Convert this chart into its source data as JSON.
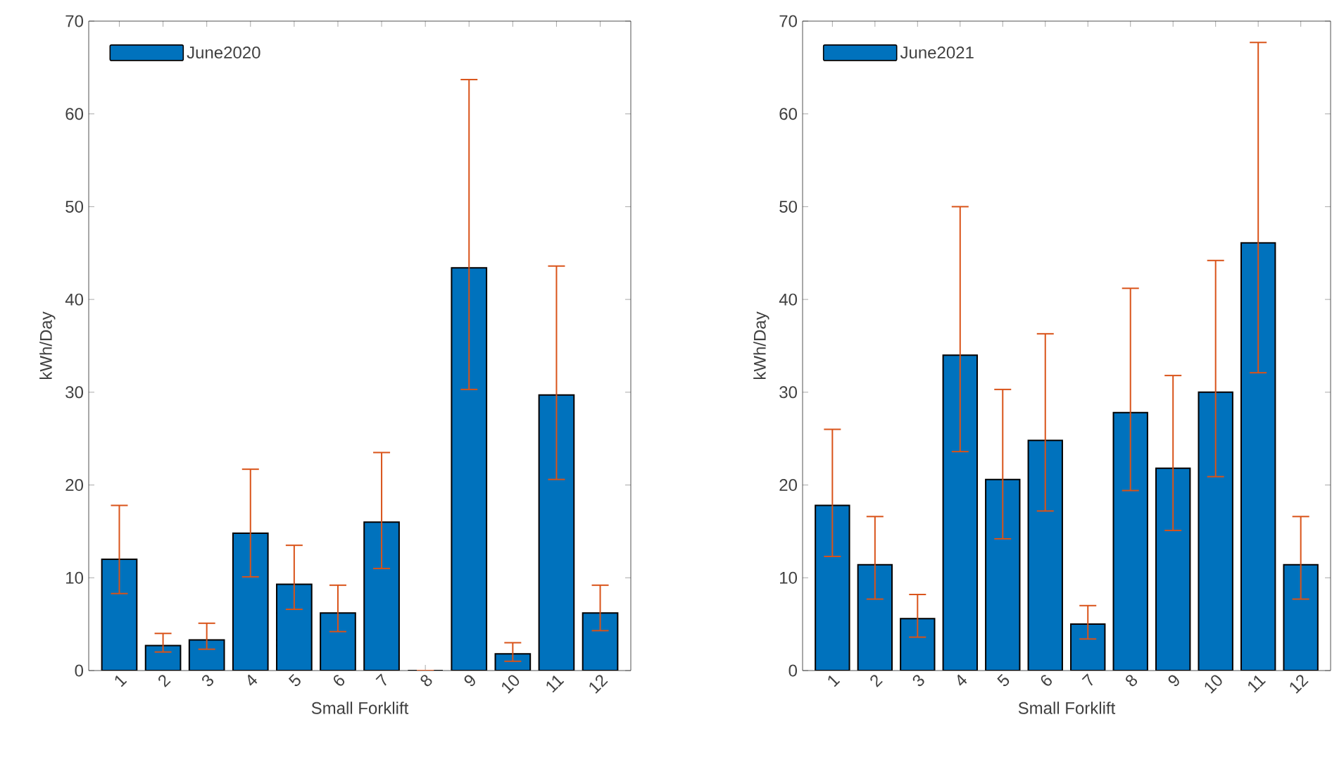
{
  "chart_data": [
    {
      "type": "bar",
      "xlabel": "Small Forklift",
      "ylabel": "kWh/Day",
      "categories": [
        "1",
        "2",
        "3",
        "4",
        "5",
        "6",
        "7",
        "8",
        "9",
        "10",
        "11",
        "12"
      ],
      "series": [
        {
          "name": "June2020",
          "color": "#0072bd",
          "values": [
            12.0,
            2.7,
            3.3,
            14.8,
            9.3,
            6.2,
            16.0,
            0,
            43.4,
            1.8,
            29.7,
            6.2
          ],
          "errors": [
            [
              8.3,
              17.8
            ],
            [
              2.0,
              4.0
            ],
            [
              2.3,
              5.1
            ],
            [
              10.1,
              21.7
            ],
            [
              6.6,
              13.5
            ],
            [
              4.2,
              9.2
            ],
            [
              11.0,
              23.5
            ],
            [
              0,
              0
            ],
            [
              30.3,
              63.7
            ],
            [
              1.0,
              3.0
            ],
            [
              20.6,
              43.6
            ],
            [
              4.3,
              9.2
            ]
          ]
        }
      ],
      "ylim": [
        0,
        70
      ],
      "yticks": [
        0,
        10,
        20,
        30,
        40,
        50,
        60,
        70
      ],
      "legend": "top left"
    },
    {
      "type": "bar",
      "xlabel": "Small Forklift",
      "ylabel": "kWh/Day",
      "categories": [
        "1",
        "2",
        "3",
        "4",
        "5",
        "6",
        "7",
        "8",
        "9",
        "10",
        "11",
        "12"
      ],
      "series": [
        {
          "name": "June2021",
          "color": "#0072bd",
          "values": [
            17.8,
            11.4,
            5.6,
            34.0,
            20.6,
            24.8,
            5.0,
            27.8,
            21.8,
            30.0,
            46.1,
            11.4
          ],
          "errors": [
            [
              12.3,
              26.0
            ],
            [
              7.7,
              16.6
            ],
            [
              3.6,
              8.2
            ],
            [
              23.6,
              50.0
            ],
            [
              14.2,
              30.3
            ],
            [
              17.2,
              36.3
            ],
            [
              3.4,
              7.0
            ],
            [
              19.4,
              41.2
            ],
            [
              15.1,
              31.8
            ],
            [
              20.9,
              44.2
            ],
            [
              32.1,
              67.7
            ],
            [
              7.7,
              16.6
            ]
          ]
        }
      ],
      "ylim": [
        0,
        70
      ],
      "yticks": [
        0,
        10,
        20,
        30,
        40,
        50,
        60,
        70
      ],
      "legend": "top left"
    }
  ]
}
